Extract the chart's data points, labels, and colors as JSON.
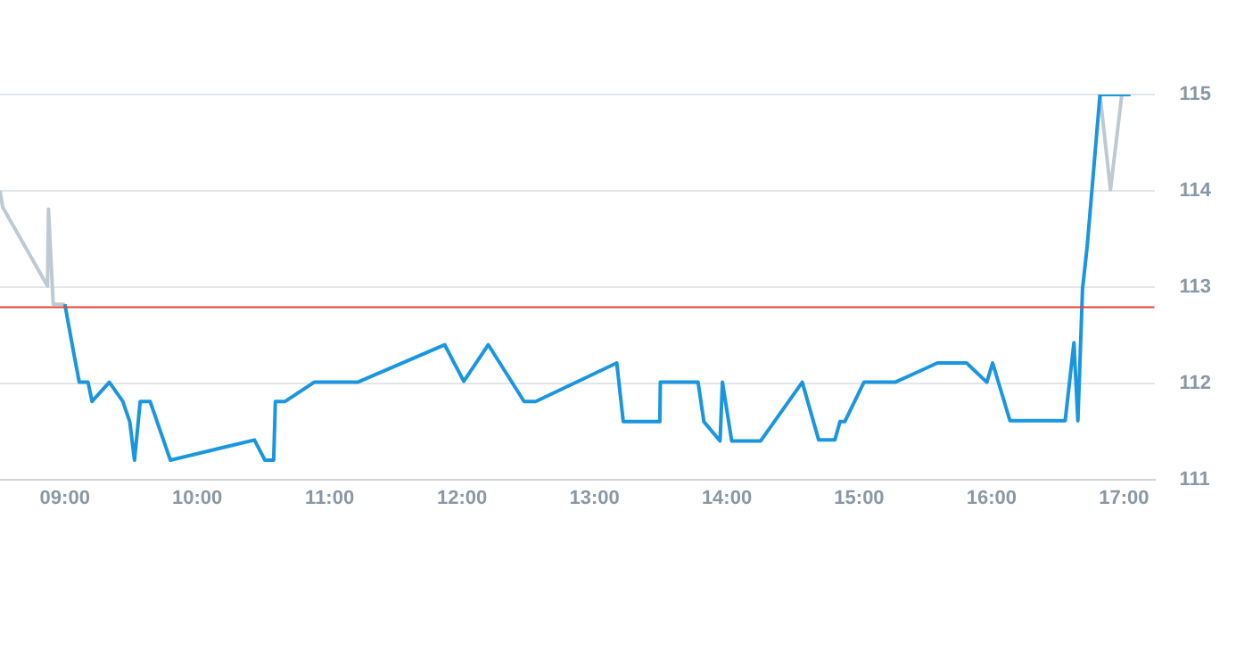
{
  "chart_data": {
    "type": "line",
    "xlim": [
      8.51,
      17.23
    ],
    "ylim": [
      111,
      115
    ],
    "xticks": [
      {
        "value": 9,
        "label": "09:00"
      },
      {
        "value": 10,
        "label": "10:00"
      },
      {
        "value": 11,
        "label": "11:00"
      },
      {
        "value": 12,
        "label": "12:00"
      },
      {
        "value": 13,
        "label": "13:00"
      },
      {
        "value": 14,
        "label": "14:00"
      },
      {
        "value": 15,
        "label": "15:00"
      },
      {
        "value": 16,
        "label": "16:00"
      },
      {
        "value": 17,
        "label": "17:00"
      }
    ],
    "yticks": [
      111,
      112,
      113,
      114,
      115
    ],
    "grid": "y",
    "legend": false,
    "marker": "none",
    "line_style": "solid",
    "ref_lines": [
      {
        "axis": "y",
        "value": 112.79,
        "color": "#e0443c"
      }
    ],
    "series": [
      {
        "color": "#1a96e0",
        "x": [
          9.0,
          9.066,
          9.109,
          9.175,
          9.205,
          9.336,
          9.438,
          9.49,
          9.526,
          9.569,
          9.644,
          9.797,
          10.432,
          10.511,
          10.577,
          10.59,
          10.664,
          10.883,
          11.211,
          11.869,
          12.013,
          12.198,
          12.469,
          12.556,
          13.169,
          13.218,
          13.494,
          13.498,
          13.783,
          13.827,
          13.949,
          13.967,
          14.037,
          14.256,
          14.57,
          14.694,
          14.816,
          14.855,
          14.891,
          15.036,
          15.272,
          15.591,
          15.811,
          15.964,
          16.008,
          16.139,
          16.556,
          16.622,
          16.652,
          16.687,
          16.722,
          16.819,
          17.05
        ],
        "values": [
          112.82,
          112.32,
          112.01,
          112.01,
          111.81,
          112.01,
          111.81,
          111.6,
          111.2,
          111.81,
          111.81,
          111.2,
          111.41,
          111.2,
          111.2,
          111.81,
          111.81,
          112.01,
          112.01,
          112.4,
          112.02,
          112.4,
          111.81,
          111.81,
          112.21,
          111.6,
          111.6,
          112.01,
          112.01,
          111.6,
          111.4,
          112.01,
          111.4,
          111.4,
          112.01,
          111.41,
          111.41,
          111.6,
          111.6,
          112.01,
          112.01,
          112.21,
          112.21,
          112.01,
          112.21,
          111.61,
          111.61,
          112.42,
          111.61,
          112.98,
          113.42,
          115.0,
          115.0
        ]
      },
      {
        "color": "#bfc9d1",
        "x": [
          8.51,
          8.53,
          8.869,
          8.876,
          8.912,
          9.0
        ],
        "values": [
          114.0,
          113.83,
          113.01,
          113.81,
          112.82,
          112.82
        ]
      },
      {
        "color": "#bfc9d1",
        "x": [
          16.819,
          16.898,
          16.984
        ],
        "values": [
          115.0,
          114.01,
          115.0
        ]
      }
    ]
  }
}
